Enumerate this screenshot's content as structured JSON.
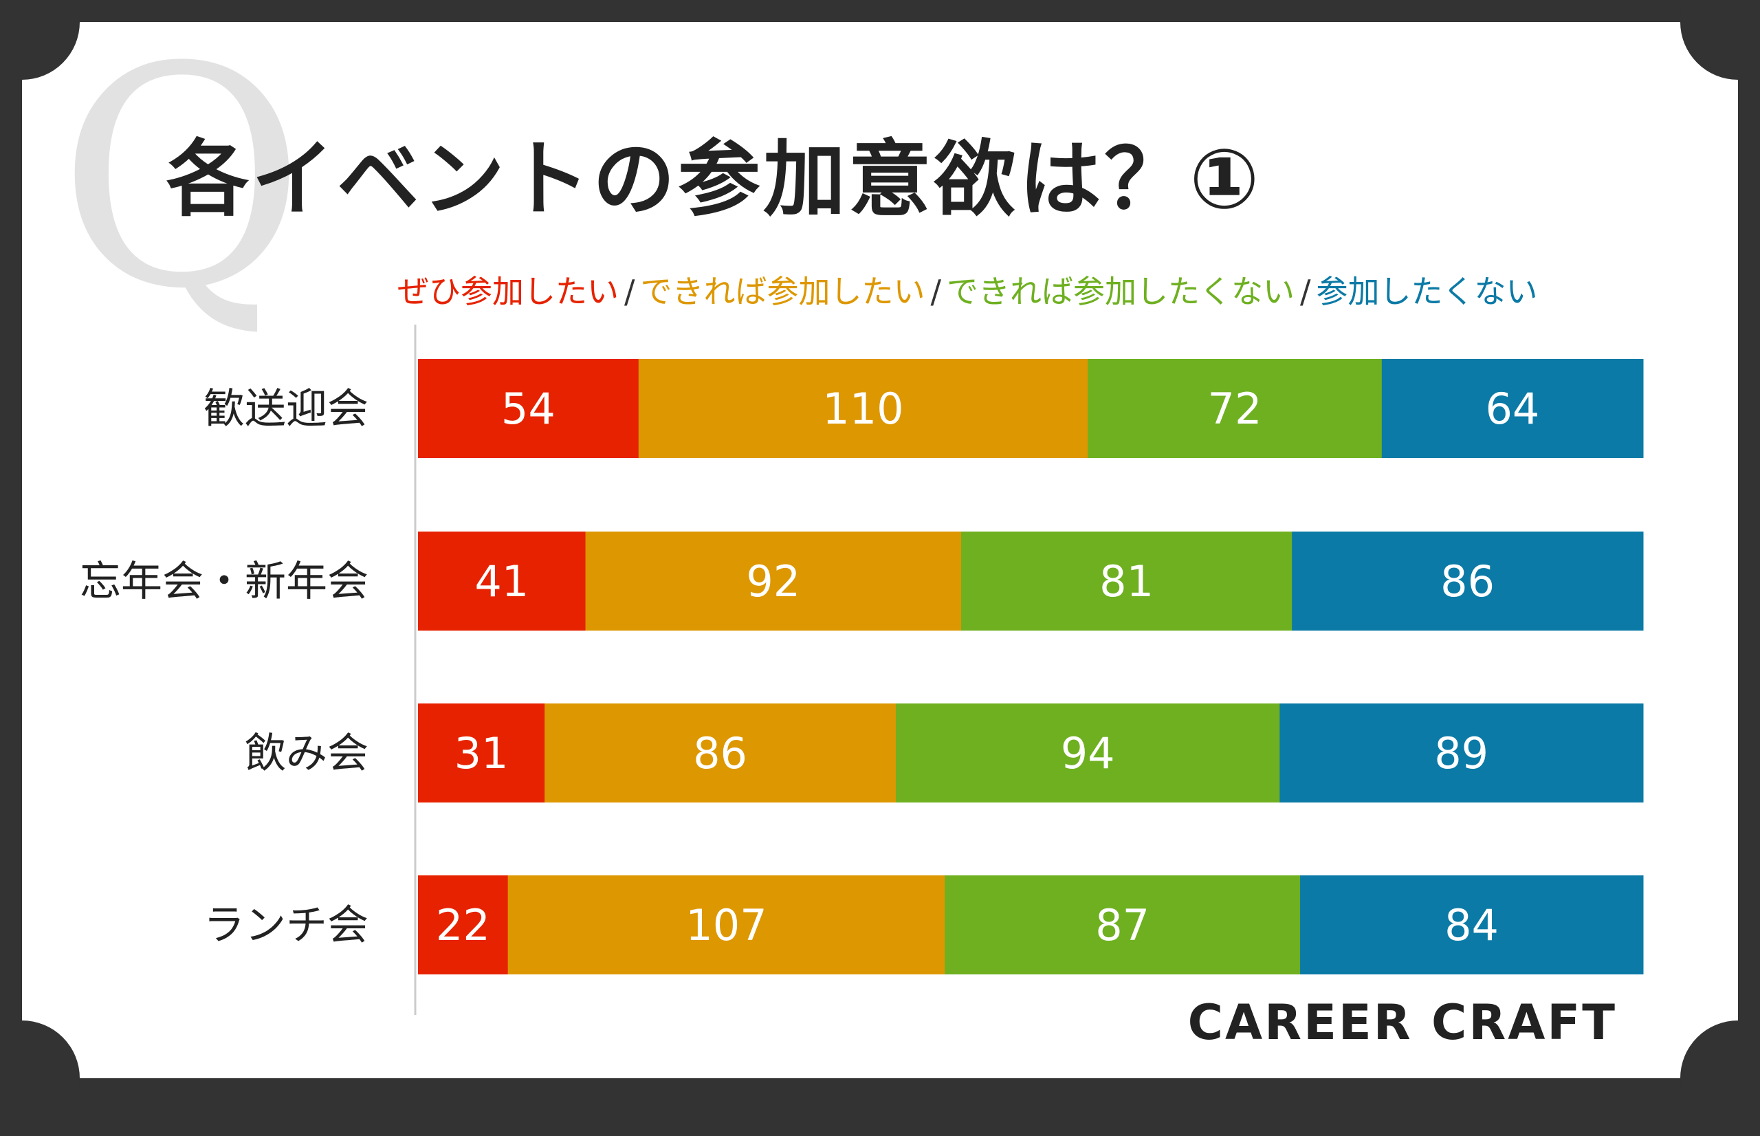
{
  "watermark": "Q",
  "brand": "CAREER CRAFT",
  "legend_separator": "/",
  "chart_data": {
    "type": "bar",
    "orientation": "horizontal",
    "stacked": true,
    "title": "各イベントの参加意欲は？①",
    "categories": [
      "歓送迎会",
      "忘年会・新年会",
      "飲み会",
      "ランチ会"
    ],
    "series": [
      {
        "name": "ぜひ参加したい",
        "color": "#e62200",
        "values": [
          54,
          41,
          31,
          22
        ]
      },
      {
        "name": "できれば参加したい",
        "color": "#dd9700",
        "values": [
          110,
          92,
          86,
          107
        ]
      },
      {
        "name": "できれば参加したくない",
        "color": "#6eb020",
        "values": [
          72,
          81,
          94,
          87
        ]
      },
      {
        "name": "参加したくない",
        "color": "#0b7aa6",
        "values": [
          64,
          86,
          89,
          84
        ]
      }
    ],
    "legend_position": "top",
    "grid": false
  }
}
